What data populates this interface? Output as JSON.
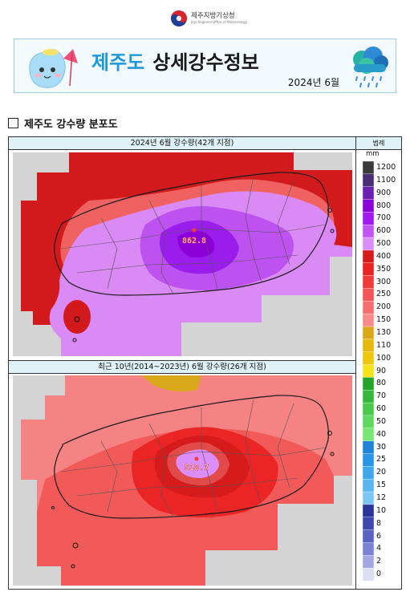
{
  "agency": {
    "name": "제주지방기상청",
    "subtitle": "Jeju Regional Office of Meteorology"
  },
  "banner": {
    "title_region": "제주도",
    "title_rest": "상세강수정보",
    "date": "2024년 6월"
  },
  "section_title": "제주도 강수량 분포도",
  "colors": {
    "banner_border": "#9fcbe5",
    "title_accent": "#1d97de",
    "caption_bg": "#dff2f7"
  },
  "maps": [
    {
      "caption": "2024년 6월 강수량(42개 지점)",
      "max_label": "862.8"
    },
    {
      "caption": "최근 10년(2014~2023년) 6월 강수량(26개 지점)",
      "max_label": "518.7"
    }
  ],
  "legend": {
    "title": "범례",
    "unit": "mm",
    "levels": [
      {
        "label": "1200",
        "color": "#3a3a3a"
      },
      {
        "label": "1100",
        "color": "#4b2f76"
      },
      {
        "label": "900",
        "color": "#6c1fb0"
      },
      {
        "label": "800",
        "color": "#8a00d6"
      },
      {
        "label": "700",
        "color": "#a01aef"
      },
      {
        "label": "600",
        "color": "#c155f4"
      },
      {
        "label": "500",
        "color": "#db8ef8"
      },
      {
        "label": "400",
        "color": "#d51b1b"
      },
      {
        "label": "350",
        "color": "#e92222"
      },
      {
        "label": "300",
        "color": "#f03b3b"
      },
      {
        "label": "250",
        "color": "#f45555"
      },
      {
        "label": "200",
        "color": "#f66f6f"
      },
      {
        "label": "150",
        "color": "#f98a8a"
      },
      {
        "label": "130",
        "color": "#d9a81a"
      },
      {
        "label": "110",
        "color": "#e6b80d"
      },
      {
        "label": "100",
        "color": "#efc80e"
      },
      {
        "label": "90",
        "color": "#f7e11d"
      },
      {
        "label": "80",
        "color": "#24a52a"
      },
      {
        "label": "70",
        "color": "#37b83c"
      },
      {
        "label": "60",
        "color": "#4ac94d"
      },
      {
        "label": "50",
        "color": "#5fd85f"
      },
      {
        "label": "40",
        "color": "#77e677"
      },
      {
        "label": "30",
        "color": "#1c83d6"
      },
      {
        "label": "25",
        "color": "#2a95e4"
      },
      {
        "label": "20",
        "color": "#3fa7ec"
      },
      {
        "label": "15",
        "color": "#5ab6f0"
      },
      {
        "label": "12",
        "color": "#7cc6f4"
      },
      {
        "label": "10",
        "color": "#2b3499"
      },
      {
        "label": "8",
        "color": "#3e47b0"
      },
      {
        "label": "6",
        "color": "#5863c2"
      },
      {
        "label": "4",
        "color": "#7a83d3"
      },
      {
        "label": "2",
        "color": "#a0a7e3"
      },
      {
        "label": "0",
        "color": "#dcdff4"
      }
    ]
  }
}
